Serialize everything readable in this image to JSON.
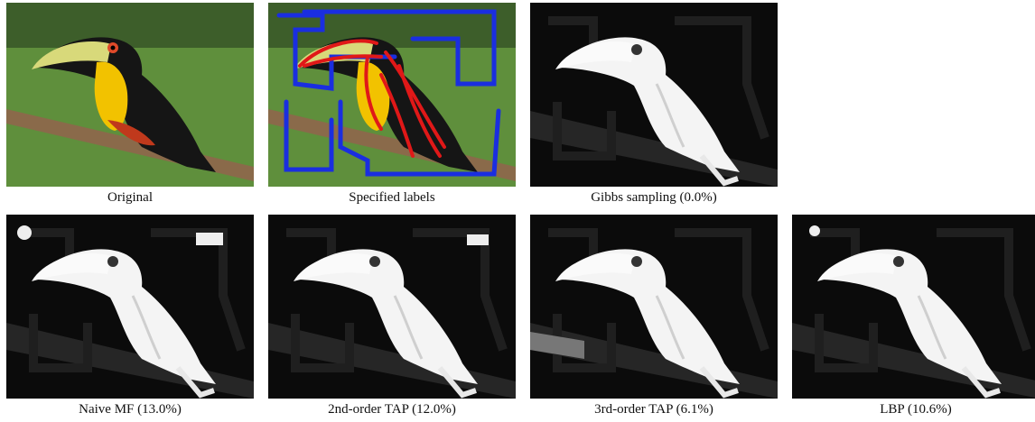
{
  "panels": [
    {
      "caption": "Original"
    },
    {
      "caption": "Specified labels"
    },
    {
      "caption": "Gibbs sampling (0.0%)"
    },
    {
      "caption": "Naive MF (13.0%)"
    },
    {
      "caption": "2nd-order TAP (12.0%)"
    },
    {
      "caption": "3rd-order TAP (6.1%)"
    },
    {
      "caption": "LBP (10.6%)"
    }
  ]
}
